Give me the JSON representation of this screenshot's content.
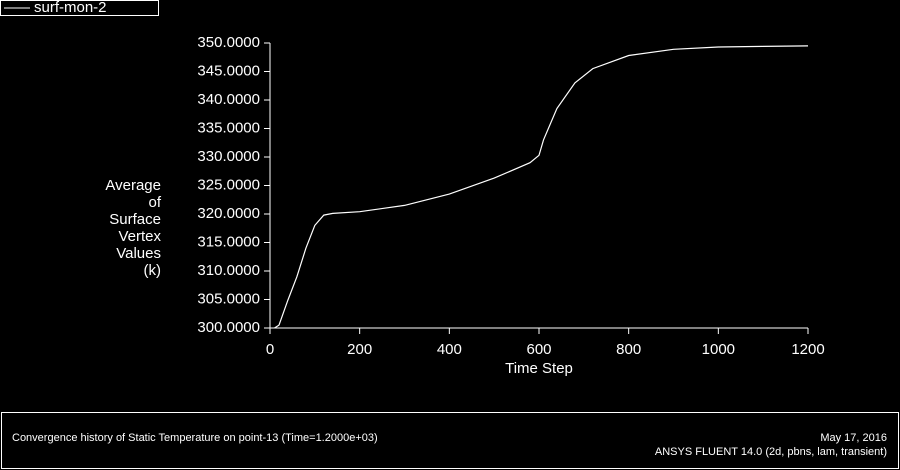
{
  "chart_data": {
    "type": "line",
    "legend": "top-left",
    "xlabel": "Time Step",
    "ylabel_lines": [
      "Average",
      "of",
      "Surface",
      "Vertex",
      "Values",
      "(k)"
    ],
    "x": [
      10,
      20,
      40,
      60,
      80,
      100,
      120,
      140,
      200,
      300,
      400,
      500,
      580,
      600,
      610,
      640,
      680,
      720,
      800,
      900,
      1000,
      1100,
      1200
    ],
    "series": [
      {
        "name": "surf-mon-2",
        "color": "#ffffff",
        "values": [
          300,
          300.5,
          304.9,
          309,
          314,
          318,
          319.8,
          320.1,
          320.4,
          321.5,
          323.5,
          326.3,
          329,
          330.3,
          333,
          338.5,
          343,
          345.5,
          347.8,
          348.9,
          349.3,
          349.4,
          349.5
        ]
      }
    ],
    "xlim": [
      0,
      1200
    ],
    "xticks": [
      0,
      200,
      400,
      600,
      800,
      1000,
      1200
    ],
    "ylim": [
      300,
      350
    ],
    "yticks": [
      {
        "value": 300,
        "label": "300.0000"
      },
      {
        "value": 305,
        "label": "305.0000"
      },
      {
        "value": 310,
        "label": "310.0000"
      },
      {
        "value": 315,
        "label": "315.0000"
      },
      {
        "value": 320,
        "label": "320.0000"
      },
      {
        "value": 325,
        "label": "325.0000"
      },
      {
        "value": 330,
        "label": "330.0000"
      },
      {
        "value": 335,
        "label": "335.0000"
      },
      {
        "value": 340,
        "label": "340.0000"
      },
      {
        "value": 345,
        "label": "345.0000"
      },
      {
        "value": 350,
        "label": "350.0000"
      }
    ],
    "footer": {
      "description": "Convergence history of Static Temperature on point-13  (Time=1.2000e+03)",
      "date": "May 17, 2016",
      "software": "ANSYS FLUENT 14.0 (2d, pbns, lam, transient)"
    }
  }
}
